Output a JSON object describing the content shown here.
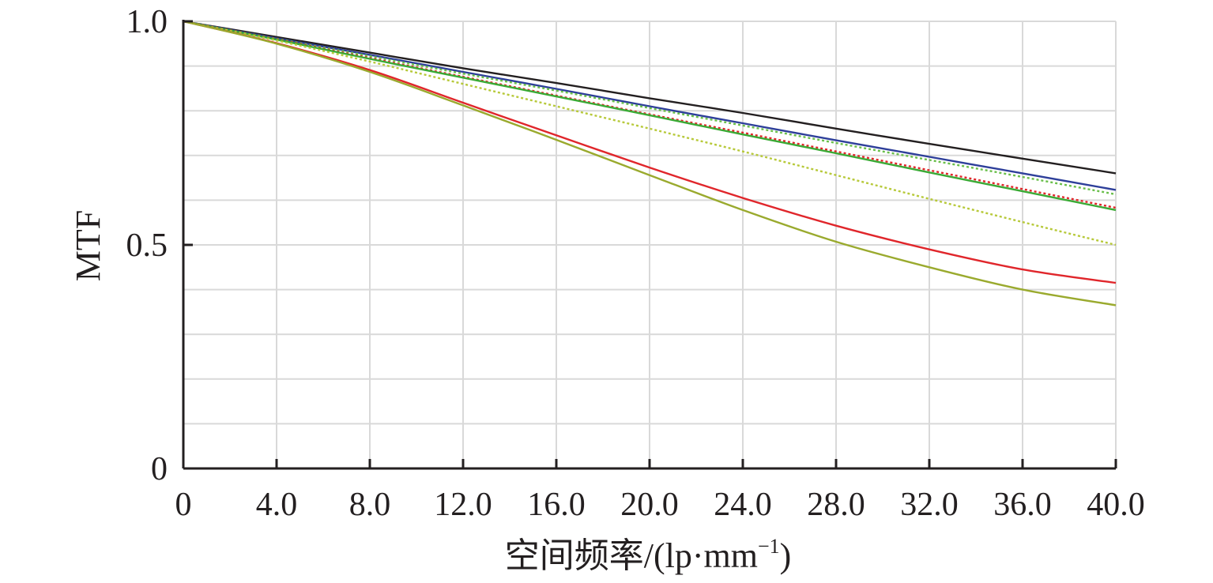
{
  "chart_data": {
    "type": "line",
    "title": "",
    "xlabel": "空间频率/(lp·mm",
    "xlabel_sup": "−1",
    "xlabel_close": ")",
    "ylabel": "MTF",
    "xlim": [
      0,
      40
    ],
    "ylim": [
      0,
      1.0
    ],
    "x_ticks": [
      0,
      4,
      8,
      12,
      16,
      20,
      24,
      28,
      32,
      36,
      40
    ],
    "x_tick_labels": [
      "0",
      "4.0",
      "8.0",
      "12.0",
      "16.0",
      "20.0",
      "24.0",
      "28.0",
      "32.0",
      "36.0",
      "40.0"
    ],
    "y_ticks": [
      0,
      0.5,
      1.0
    ],
    "y_tick_labels": [
      "0",
      "0.5",
      "1.0"
    ],
    "y_grid": [
      0.1,
      0.2,
      0.3,
      0.4,
      0.5,
      0.6,
      0.7,
      0.8,
      0.9,
      1.0
    ],
    "grid": true,
    "legend": "none",
    "x": [
      0,
      4,
      8,
      12,
      16,
      20,
      24,
      28,
      32,
      36,
      40
    ],
    "series": [
      {
        "color": "#231f20",
        "style": "solid",
        "values": [
          1.0,
          0.965,
          0.93,
          0.895,
          0.862,
          0.828,
          0.795,
          0.76,
          0.726,
          0.693,
          0.66
        ]
      },
      {
        "color": "#2e3f9a",
        "style": "solid",
        "values": [
          1.0,
          0.962,
          0.925,
          0.887,
          0.849,
          0.81,
          0.772,
          0.734,
          0.697,
          0.66,
          0.623
        ]
      },
      {
        "color": "#6abf4b",
        "style": "dotted",
        "values": [
          1.0,
          0.961,
          0.922,
          0.883,
          0.845,
          0.806,
          0.767,
          0.728,
          0.69,
          0.652,
          0.613
        ]
      },
      {
        "color": "#e0262b",
        "style": "dotted",
        "values": [
          1.0,
          0.96,
          0.918,
          0.876,
          0.834,
          0.792,
          0.751,
          0.709,
          0.667,
          0.625,
          0.583
        ]
      },
      {
        "color": "#3aaa35",
        "style": "solid",
        "values": [
          1.0,
          0.959,
          0.916,
          0.874,
          0.832,
          0.79,
          0.747,
          0.705,
          0.662,
          0.62,
          0.578
        ]
      },
      {
        "color": "#b7c93a",
        "style": "dotted",
        "values": [
          1.0,
          0.957,
          0.91,
          0.86,
          0.81,
          0.76,
          0.709,
          0.656,
          0.603,
          0.551,
          0.5
        ]
      },
      {
        "color": "#e0262b",
        "style": "solid",
        "values": [
          1.0,
          0.951,
          0.891,
          0.818,
          0.745,
          0.673,
          0.605,
          0.543,
          0.49,
          0.445,
          0.415
        ]
      },
      {
        "color": "#9aaa2e",
        "style": "solid",
        "values": [
          1.0,
          0.95,
          0.887,
          0.812,
          0.735,
          0.656,
          0.578,
          0.507,
          0.45,
          0.4,
          0.365
        ]
      }
    ]
  }
}
